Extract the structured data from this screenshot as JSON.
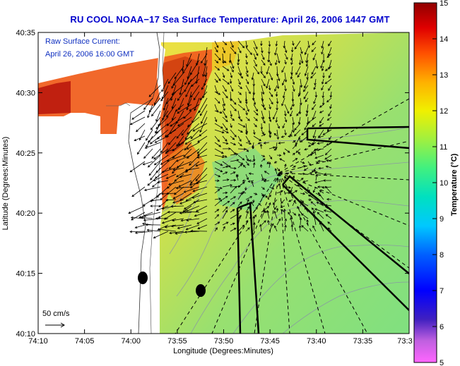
{
  "title": "RU COOL  NOAA−17  Sea Surface Temperature:  April 26, 2006 1447 GMT",
  "annotation": {
    "line1": "Raw Surface Current:",
    "line2": "April 26, 2006 16:00 GMT"
  },
  "scale_label": "50 cm/s",
  "xaxis": {
    "label": "Longitude (Degrees:Minutes)",
    "ticks": [
      "74:10",
      "74:05",
      "74:00",
      "73:55",
      "73:50",
      "73:45",
      "73:40",
      "73:35",
      "73:3"
    ]
  },
  "yaxis": {
    "label": "Latitude (Degrees:Minutes)",
    "ticks": [
      "40:35",
      "40:30",
      "40:25",
      "40:20",
      "40:15",
      "40:10"
    ]
  },
  "colorbar": {
    "label": "Temperature (°C)",
    "ticks": [
      "15",
      "14",
      "13",
      "12",
      "11",
      "10",
      "9",
      "8",
      "7",
      "6",
      "5"
    ]
  },
  "colors": {
    "title": "#0000cc",
    "annotation": "#1030c0"
  }
}
